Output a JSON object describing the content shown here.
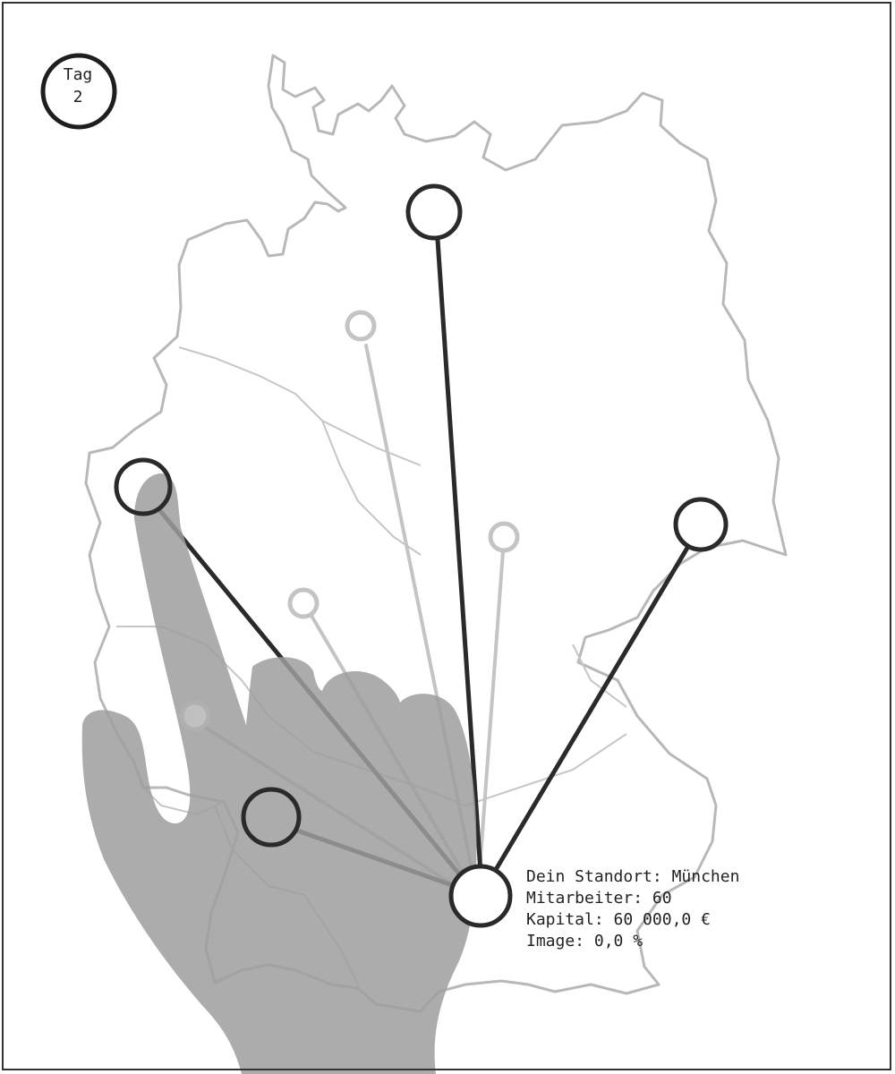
{
  "day": {
    "label": "Tag",
    "number": "2"
  },
  "info": {
    "location_label": "Dein Standort:",
    "location_value": "München",
    "employees_label": "Mitarbeiter:",
    "employees_value": "60",
    "capital_label": "Kapital:",
    "capital_value": "60 000,0 €",
    "image_label": "Image:",
    "image_value": "0,0 %"
  },
  "map": {
    "region": "Deutschland",
    "colors": {
      "outline": "#b8b8b8",
      "route_active": "#2a2a2a",
      "route_inactive": "#c4c4c4",
      "hand": "#9e9e9e"
    }
  },
  "icons": {
    "hand": "tutorial-pointing-hand",
    "day": "circle-badge"
  }
}
